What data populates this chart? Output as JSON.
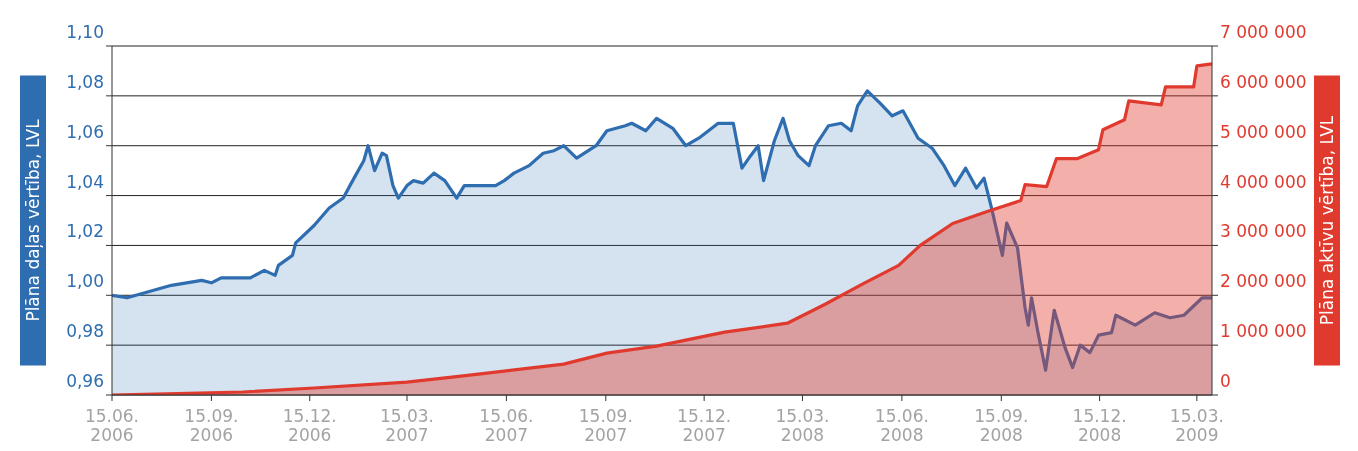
{
  "chart_data": {
    "type": "area",
    "ylabel": "Plāna daļas vērtība, LVL",
    "y2label": "Plāna aktīvu vērtība, LVL",
    "xlim": [
      "2006-06-15",
      "2009-03-29"
    ],
    "xticks": [
      {
        "value": "2006-06-15",
        "label": "15.06.\n2006"
      },
      {
        "value": "2006-09-15",
        "label": "15.09.\n2006"
      },
      {
        "value": "2006-12-15",
        "label": "15.12.\n2006"
      },
      {
        "value": "2007-03-15",
        "label": "15.03.\n2007"
      },
      {
        "value": "2007-06-15",
        "label": "15.06.\n2007"
      },
      {
        "value": "2007-09-15",
        "label": "15.09.\n2007"
      },
      {
        "value": "2007-12-15",
        "label": "15.12.\n2007"
      },
      {
        "value": "2008-03-15",
        "label": "15.03.\n2008"
      },
      {
        "value": "2008-06-15",
        "label": "15.06.\n2008"
      },
      {
        "value": "2008-09-15",
        "label": "15.09.\n2008"
      },
      {
        "value": "2008-12-15",
        "label": "15.12.\n2008"
      },
      {
        "value": "2009-03-15",
        "label": "15.03.\n2009"
      }
    ],
    "ylim": [
      0.96,
      1.1
    ],
    "yticks": [
      {
        "value": 0.96,
        "label": "0,96"
      },
      {
        "value": 0.98,
        "label": "0,98"
      },
      {
        "value": 1.0,
        "label": "1,00"
      },
      {
        "value": 1.02,
        "label": "1,02"
      },
      {
        "value": 1.04,
        "label": "1,04"
      },
      {
        "value": 1.06,
        "label": "1,06"
      },
      {
        "value": 1.08,
        "label": "1,08"
      },
      {
        "value": 1.1,
        "label": "1,10"
      }
    ],
    "y2lim": [
      0,
      7000000
    ],
    "y2ticks": [
      {
        "value": 0,
        "label": "0"
      },
      {
        "value": 1000000,
        "label": "1 000 000"
      },
      {
        "value": 2000000,
        "label": "2 000 000"
      },
      {
        "value": 3000000,
        "label": "3 000 000"
      },
      {
        "value": 4000000,
        "label": "4 000 000"
      },
      {
        "value": 5000000,
        "label": "5 000 000"
      },
      {
        "value": 6000000,
        "label": "6 000 000"
      },
      {
        "value": 7000000,
        "label": "7 000 000"
      }
    ],
    "grid": "y",
    "series": [
      {
        "color": "#2e6db0",
        "x": [
          "2006-06-15",
          "2006-06-29",
          "2006-08-09",
          "2006-09-06",
          "2006-09-15",
          "2006-09-24",
          "2006-10-21",
          "2006-11-03",
          "2006-11-13",
          "2006-11-16",
          "2006-11-29",
          "2006-12-02",
          "2006-12-19",
          "2007-01-02",
          "2007-01-15",
          "2007-01-25",
          "2007-02-03",
          "2007-02-07",
          "2007-02-13",
          "2007-02-20",
          "2007-02-24",
          "2007-03-02",
          "2007-03-07",
          "2007-03-15",
          "2007-03-21",
          "2007-03-30",
          "2007-04-09",
          "2007-04-19",
          "2007-04-30",
          "2007-05-07",
          "2007-05-20",
          "2007-06-05",
          "2007-06-13",
          "2007-06-22",
          "2007-07-06",
          "2007-07-19",
          "2007-07-29",
          "2007-08-07",
          "2007-08-19",
          "2007-09-06",
          "2007-09-16",
          "2007-10-03",
          "2007-10-09",
          "2007-10-22",
          "2007-11-01",
          "2007-11-16",
          "2007-11-28",
          "2007-12-10",
          "2007-12-28",
          "2008-01-11",
          "2008-01-19",
          "2008-01-27",
          "2008-02-03",
          "2008-02-08",
          "2008-02-18",
          "2008-02-26",
          "2008-03-03",
          "2008-03-11",
          "2008-03-21",
          "2008-03-27",
          "2008-04-08",
          "2008-04-20",
          "2008-04-29",
          "2008-05-05",
          "2008-05-14",
          "2008-05-26",
          "2008-06-06",
          "2008-06-16",
          "2008-06-30",
          "2008-07-13",
          "2008-07-24",
          "2008-08-03",
          "2008-08-13",
          "2008-08-23",
          "2008-08-30",
          "2008-09-06",
          "2008-09-16",
          "2008-09-20",
          "2008-09-30",
          "2008-10-07",
          "2008-10-10",
          "2008-10-13",
          "2008-10-19",
          "2008-10-26",
          "2008-11-03",
          "2008-11-13",
          "2008-11-20",
          "2008-11-27",
          "2008-12-06",
          "2008-12-14",
          "2008-12-26",
          "2008-12-30",
          "2009-01-17",
          "2009-02-04",
          "2009-02-18",
          "2009-03-03",
          "2009-03-20",
          "2009-03-29"
        ],
        "values": [
          1.0,
          0.999,
          1.004,
          1.006,
          1.005,
          1.007,
          1.007,
          1.01,
          1.008,
          1.012,
          1.016,
          1.021,
          1.028,
          1.035,
          1.039,
          1.047,
          1.054,
          1.06,
          1.05,
          1.057,
          1.056,
          1.044,
          1.039,
          1.044,
          1.046,
          1.045,
          1.049,
          1.046,
          1.039,
          1.044,
          1.044,
          1.044,
          1.046,
          1.049,
          1.052,
          1.057,
          1.058,
          1.06,
          1.055,
          1.06,
          1.066,
          1.068,
          1.069,
          1.066,
          1.071,
          1.067,
          1.06,
          1.063,
          1.069,
          1.069,
          1.051,
          1.056,
          1.06,
          1.046,
          1.062,
          1.071,
          1.062,
          1.056,
          1.052,
          1.06,
          1.068,
          1.069,
          1.066,
          1.076,
          1.082,
          1.077,
          1.072,
          1.074,
          1.063,
          1.059,
          1.052,
          1.044,
          1.051,
          1.043,
          1.047,
          1.035,
          1.016,
          1.029,
          1.019,
          0.995,
          0.988,
          0.999,
          0.985,
          0.97,
          0.994,
          0.979,
          0.971,
          0.98,
          0.977,
          0.984,
          0.985,
          0.992,
          0.988,
          0.993,
          0.991,
          0.992,
          0.999,
          0.999
        ]
      },
      {
        "color": "#e03a2e",
        "axis": "y2",
        "x": [
          "2006-06-15",
          "2006-10-14",
          "2006-12-19",
          "2007-03-15",
          "2007-05-04",
          "2007-06-13",
          "2007-08-07",
          "2007-09-16",
          "2007-11-01",
          "2008-01-03",
          "2008-03-01",
          "2008-04-05",
          "2008-05-09",
          "2008-06-12",
          "2008-07-02",
          "2008-08-01",
          "2008-09-02",
          "2008-10-03",
          "2008-10-07",
          "2008-10-27",
          "2008-11-05",
          "2008-11-24",
          "2008-12-14",
          "2008-12-18",
          "2009-01-07",
          "2009-01-11",
          "2009-02-10",
          "2009-02-14",
          "2009-03-12",
          "2009-03-15",
          "2009-03-29"
        ],
        "values": [
          0,
          60000,
          140000,
          260000,
          380000,
          480000,
          620000,
          840000,
          980000,
          1260000,
          1440000,
          1820000,
          2220000,
          2600000,
          3000000,
          3440000,
          3680000,
          3900000,
          4220000,
          4180000,
          4740000,
          4740000,
          4920000,
          5320000,
          5520000,
          5900000,
          5820000,
          6180000,
          6180000,
          6600000,
          6640000
        ]
      }
    ]
  }
}
